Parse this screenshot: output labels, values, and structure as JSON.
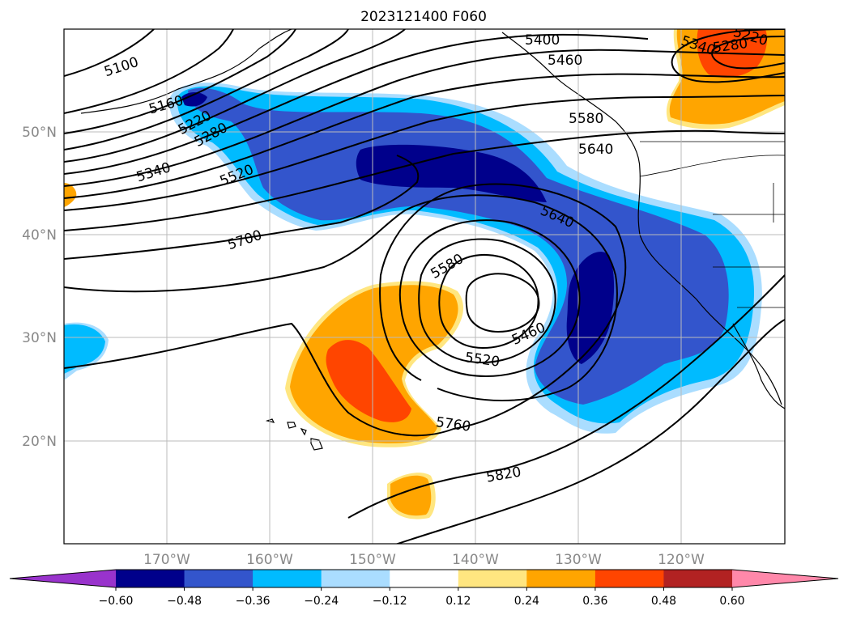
{
  "title": "2023121400 F060",
  "latitude_labels": [
    "50°N",
    "40°N",
    "30°N",
    "20°N"
  ],
  "longitude_labels": [
    "170°W",
    "160°W",
    "150°W",
    "140°W",
    "130°W",
    "120°W"
  ],
  "map_extent": {
    "lon_min": -180,
    "lon_max": -110,
    "lat_min": 10,
    "lat_max": 60
  },
  "gridlines": true,
  "colorbar": {
    "orientation": "horizontal",
    "extend": "both",
    "tick_labels": [
      "−0.60",
      "−0.48",
      "−0.36",
      "−0.24",
      "−0.12",
      "0.12",
      "0.24",
      "0.36",
      "0.48",
      "0.60"
    ],
    "levels": [
      -0.6,
      -0.48,
      -0.36,
      -0.24,
      -0.12,
      0.12,
      0.24,
      0.36,
      0.48,
      0.6
    ],
    "colors": [
      "#9933cc",
      "#00008b",
      "#3355cc",
      "#00bbff",
      "#aaddff",
      "#ffffff",
      "#ffe680",
      "#ffa500",
      "#ff4500",
      "#b22222",
      "#ff88aa"
    ]
  },
  "height_contour_labels": [
    "5100",
    "5160",
    "5220",
    "5280",
    "5340",
    "5520",
    "5700",
    "5400",
    "5460",
    "5580",
    "5640",
    "5640",
    "5580",
    "5460",
    "5520",
    "5760",
    "5820",
    "5220",
    "5280",
    "5340"
  ],
  "contour_color": "#000000"
}
